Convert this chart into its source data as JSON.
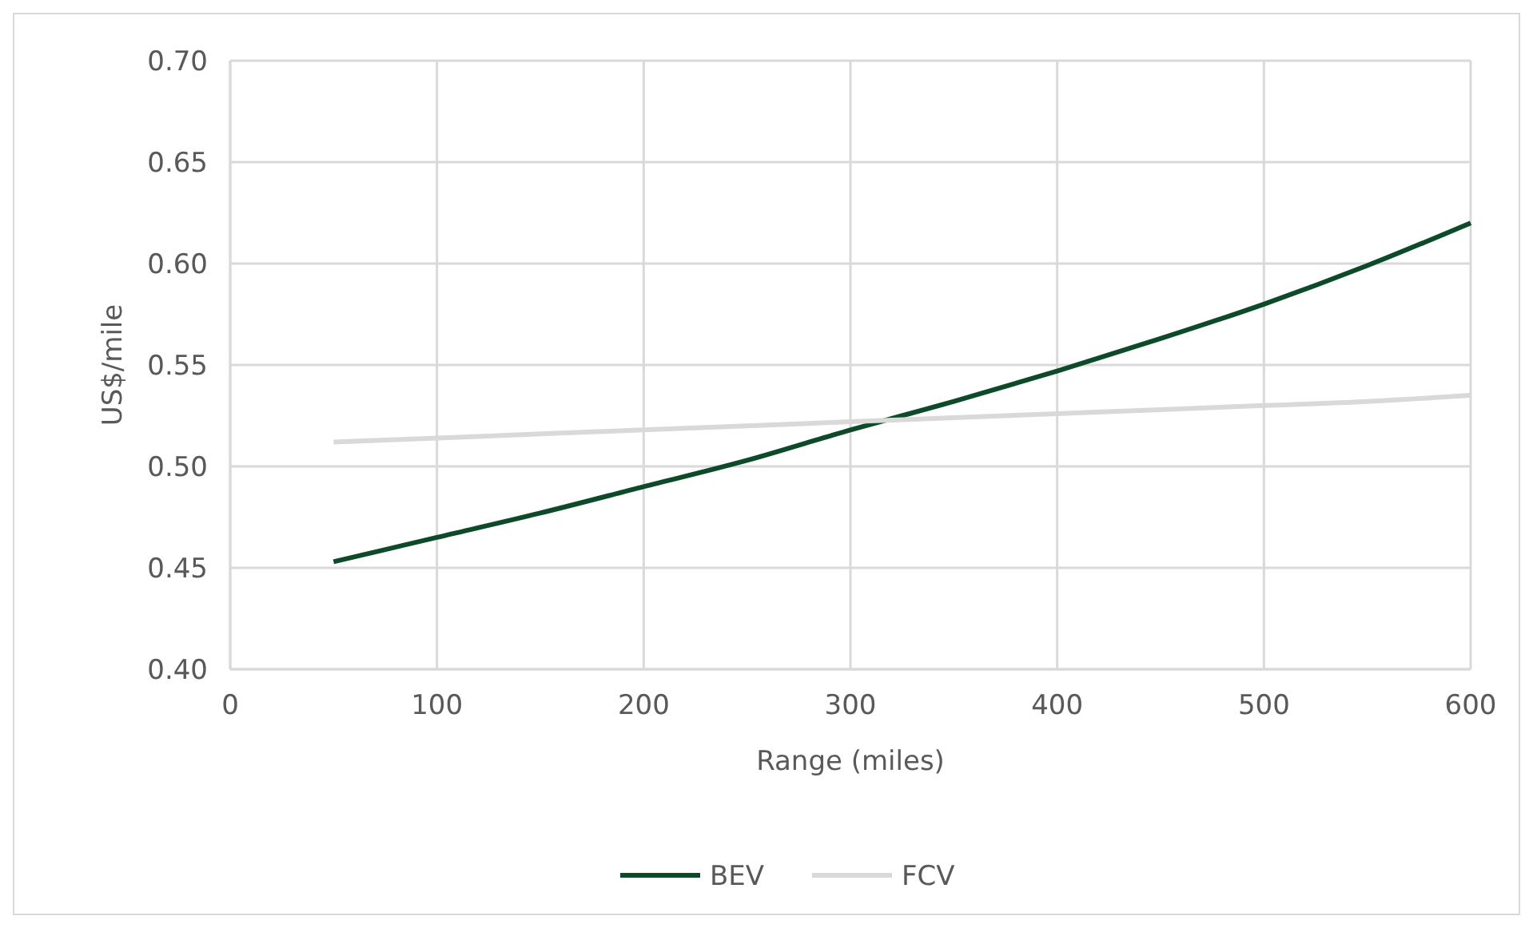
{
  "chart_data": {
    "type": "line",
    "xlabel": "Range (miles)",
    "ylabel": "US$/mile",
    "xlim": [
      0,
      600
    ],
    "xticks": [
      0,
      100,
      200,
      300,
      400,
      500,
      600
    ],
    "ylim": [
      0.4,
      0.7
    ],
    "yticks": [
      {
        "value": 0.4,
        "label": "0.40"
      },
      {
        "value": 0.45,
        "label": "0.45"
      },
      {
        "value": 0.5,
        "label": "0.50"
      },
      {
        "value": 0.55,
        "label": "0.55"
      },
      {
        "value": 0.6,
        "label": "0.60"
      },
      {
        "value": 0.65,
        "label": "0.65"
      },
      {
        "value": 0.7,
        "label": "0.70"
      }
    ],
    "grid": true,
    "legend": "bottom",
    "marker": "none",
    "line_style": "solid",
    "x": [
      50,
      100,
      150,
      200,
      250,
      300,
      350,
      400,
      450,
      500,
      550,
      600
    ],
    "series": [
      {
        "name": "BEV",
        "color": "#0d4a2a",
        "values": [
          0.453,
          0.465,
          0.477,
          0.49,
          0.503,
          0.518,
          0.532,
          0.547,
          0.563,
          0.58,
          0.599,
          0.62
        ]
      },
      {
        "name": "FCV",
        "color": "#d9d9d9",
        "values": [
          0.512,
          0.514,
          0.516,
          0.518,
          0.52,
          0.522,
          0.524,
          0.526,
          0.528,
          0.53,
          0.532,
          0.535
        ]
      }
    ]
  }
}
